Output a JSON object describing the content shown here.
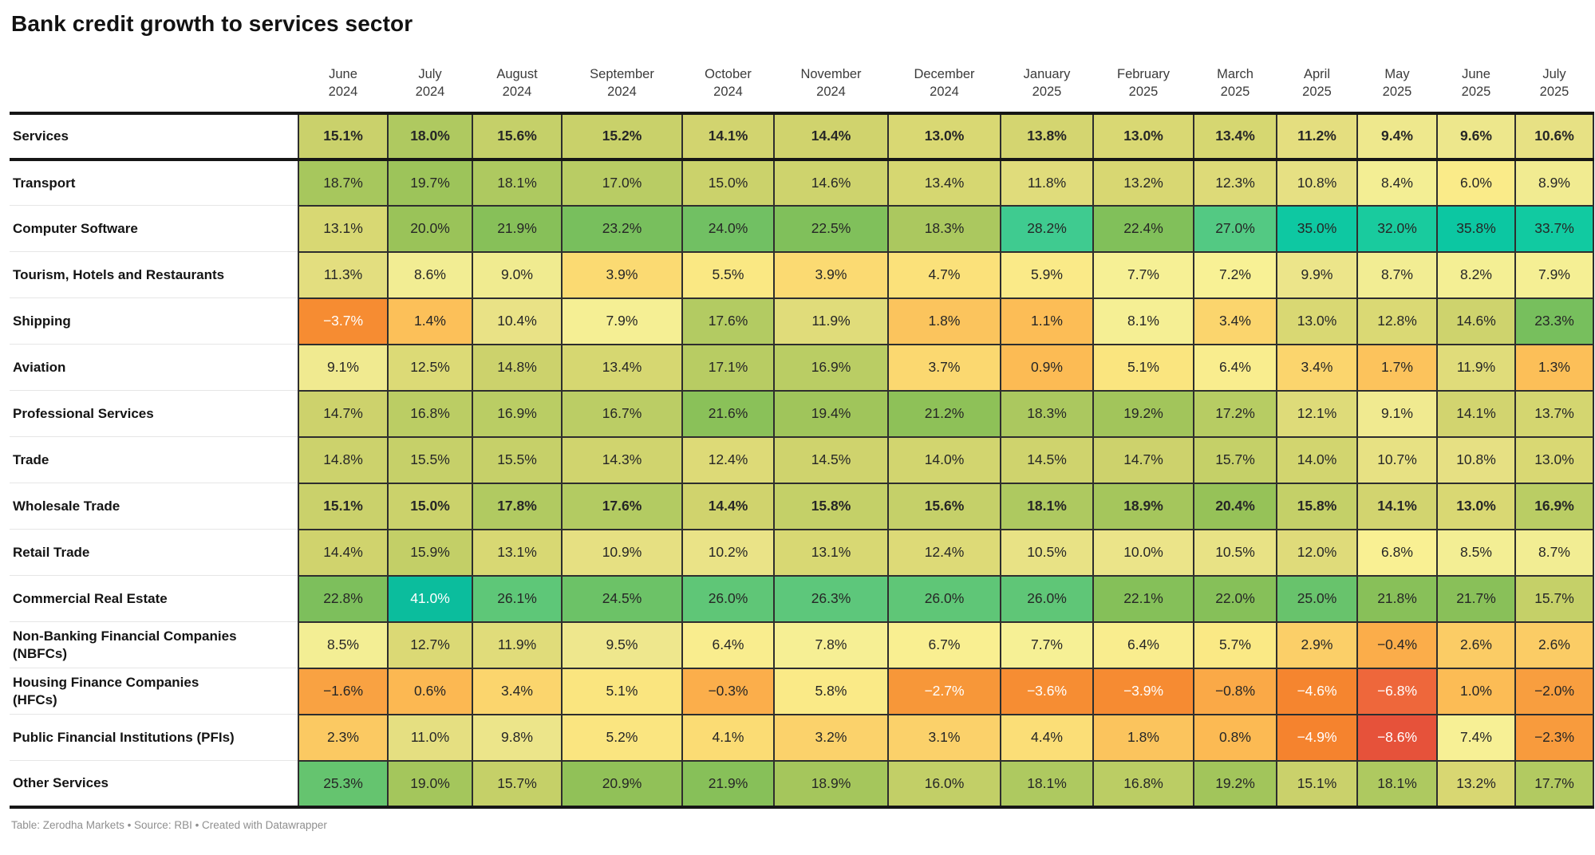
{
  "title": "Bank credit growth to services sector",
  "footer": "Table: Zerodha Markets • Source: RBI • Created with Datawrapper",
  "chart_data": {
    "type": "heatmap",
    "unit": "%",
    "value_note": "year-on-year bank credit growth, percent",
    "columns": [
      {
        "month": "June",
        "year": "2024"
      },
      {
        "month": "July",
        "year": "2024"
      },
      {
        "month": "August",
        "year": "2024"
      },
      {
        "month": "September",
        "year": "2024"
      },
      {
        "month": "October",
        "year": "2024"
      },
      {
        "month": "November",
        "year": "2024"
      },
      {
        "month": "December",
        "year": "2024"
      },
      {
        "month": "January",
        "year": "2025"
      },
      {
        "month": "February",
        "year": "2025"
      },
      {
        "month": "March",
        "year": "2025"
      },
      {
        "month": "April",
        "year": "2025"
      },
      {
        "month": "May",
        "year": "2025"
      },
      {
        "month": "June",
        "year": "2025"
      },
      {
        "month": "July",
        "year": "2025"
      }
    ],
    "rows": [
      {
        "label": "Services",
        "emphasis": true,
        "values": [
          15.1,
          18.0,
          15.6,
          15.2,
          14.1,
          14.4,
          13.0,
          13.8,
          13.0,
          13.4,
          11.2,
          9.4,
          9.6,
          10.6
        ]
      },
      {
        "label": "Transport",
        "emphasis": false,
        "values": [
          18.7,
          19.7,
          18.1,
          17.0,
          15.0,
          14.6,
          13.4,
          11.8,
          13.2,
          12.3,
          10.8,
          8.4,
          6.0,
          8.9
        ]
      },
      {
        "label": "Computer Software",
        "emphasis": false,
        "values": [
          13.1,
          20.0,
          21.9,
          23.2,
          24.0,
          22.5,
          18.3,
          28.2,
          22.4,
          27.0,
          35.0,
          32.0,
          35.8,
          33.7
        ]
      },
      {
        "label": "Tourism, Hotels and Restaurants",
        "emphasis": false,
        "values": [
          11.3,
          8.6,
          9.0,
          3.9,
          5.5,
          3.9,
          4.7,
          5.9,
          7.7,
          7.2,
          9.9,
          8.7,
          8.2,
          7.9
        ]
      },
      {
        "label": "Shipping",
        "emphasis": false,
        "values": [
          -3.7,
          1.4,
          10.4,
          7.9,
          17.6,
          11.9,
          1.8,
          1.1,
          8.1,
          3.4,
          13.0,
          12.8,
          14.6,
          23.3
        ]
      },
      {
        "label": "Aviation",
        "emphasis": false,
        "values": [
          9.1,
          12.5,
          14.8,
          13.4,
          17.1,
          16.9,
          3.7,
          0.9,
          5.1,
          6.4,
          3.4,
          1.7,
          11.9,
          1.3
        ]
      },
      {
        "label": "Professional Services",
        "emphasis": false,
        "values": [
          14.7,
          16.8,
          16.9,
          16.7,
          21.6,
          19.4,
          21.2,
          18.3,
          19.2,
          17.2,
          12.1,
          9.1,
          14.1,
          13.7
        ]
      },
      {
        "label": "Trade",
        "emphasis": false,
        "values": [
          14.8,
          15.5,
          15.5,
          14.3,
          12.4,
          14.5,
          14.0,
          14.5,
          14.7,
          15.7,
          14.0,
          10.7,
          10.8,
          13.0
        ]
      },
      {
        "label": "Wholesale Trade",
        "emphasis": true,
        "values": [
          15.1,
          15.0,
          17.8,
          17.6,
          14.4,
          15.8,
          15.6,
          18.1,
          18.9,
          20.4,
          15.8,
          14.1,
          13.0,
          16.9
        ]
      },
      {
        "label": "Retail Trade",
        "emphasis": false,
        "values": [
          14.4,
          15.9,
          13.1,
          10.9,
          10.2,
          13.1,
          12.4,
          10.5,
          10.0,
          10.5,
          12.0,
          6.8,
          8.5,
          8.7
        ]
      },
      {
        "label": "Commercial Real Estate",
        "emphasis": false,
        "values": [
          22.8,
          41.0,
          26.1,
          24.5,
          26.0,
          26.3,
          26.0,
          26.0,
          22.1,
          22.0,
          25.0,
          21.8,
          21.7,
          15.7
        ]
      },
      {
        "label": "Non-Banking Financial Companies (NBFCs)",
        "emphasis": false,
        "values": [
          8.5,
          12.7,
          11.9,
          9.5,
          6.4,
          7.8,
          6.7,
          7.7,
          6.4,
          5.7,
          2.9,
          -0.4,
          2.6,
          2.6
        ]
      },
      {
        "label": "Housing Finance Companies (HFCs)",
        "emphasis": false,
        "values": [
          -1.6,
          0.6,
          3.4,
          5.1,
          -0.3,
          5.8,
          -2.7,
          -3.6,
          -3.9,
          -0.8,
          -4.6,
          -6.8,
          1.0,
          -2.0
        ]
      },
      {
        "label": "Public Financial Institutions (PFIs)",
        "emphasis": false,
        "values": [
          2.3,
          11.0,
          9.8,
          5.2,
          4.1,
          3.2,
          3.1,
          4.4,
          1.8,
          0.8,
          -4.9,
          -8.6,
          7.4,
          -2.3
        ]
      },
      {
        "label": "Other Services",
        "emphasis": false,
        "values": [
          25.3,
          19.0,
          15.7,
          20.9,
          21.9,
          18.9,
          16.0,
          18.1,
          16.8,
          19.2,
          15.1,
          18.1,
          13.2,
          17.7
        ]
      }
    ],
    "color_scale": {
      "stops": [
        [
          -9,
          "#e44d3a"
        ],
        [
          -7,
          "#ed643c"
        ],
        [
          -5,
          "#f5822e"
        ],
        [
          -3.5,
          "#f68e33"
        ],
        [
          -2,
          "#f89e3f"
        ],
        [
          -0.5,
          "#fbac49"
        ],
        [
          1,
          "#fcbc55"
        ],
        [
          2.5,
          "#fbcb64"
        ],
        [
          4,
          "#fbdb73"
        ],
        [
          5.5,
          "#fae883"
        ],
        [
          7,
          "#f9f195"
        ],
        [
          8.5,
          "#f3ee94"
        ],
        [
          10,
          "#ebe489"
        ],
        [
          11.5,
          "#e2dd7d"
        ],
        [
          13,
          "#d9d873"
        ],
        [
          14.5,
          "#cfd36d"
        ],
        [
          16,
          "#c2cf67"
        ],
        [
          17.5,
          "#b4cb62"
        ],
        [
          19,
          "#a4c65c"
        ],
        [
          20.5,
          "#95c258"
        ],
        [
          22,
          "#86c059"
        ],
        [
          23.5,
          "#75bf5e"
        ],
        [
          25,
          "#68c36c"
        ],
        [
          26.5,
          "#5bc87d"
        ],
        [
          28,
          "#42cb8f"
        ],
        [
          30,
          "#28cb97"
        ],
        [
          33,
          "#12cba1"
        ],
        [
          36,
          "#0cc7a2"
        ],
        [
          41,
          "#0bbd9d"
        ]
      ],
      "white_text_below": -2.6,
      "white_text_above": 40,
      "dark_text_color": "#262626",
      "light_text_color": "#ffffff"
    }
  }
}
